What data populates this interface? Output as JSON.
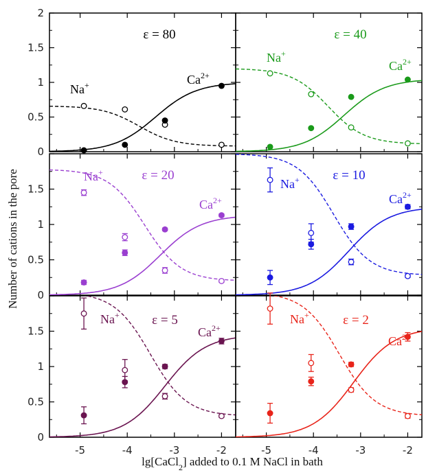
{
  "chart_data": {
    "type": "scatter",
    "xlabel": "lg[CaCl",
    "xlabel_sub": "2",
    "xlabel_rest": "] added to 0.1 M NaCl in bath",
    "ylabel": "Number of cations in the pore",
    "x_ticks": [
      -5,
      -4,
      -3,
      -2
    ],
    "x_tick_labels": [
      "-5",
      "-4",
      "-3",
      "-2"
    ],
    "xlim": [
      -5.65,
      -1.7
    ],
    "y_ticks_top": [
      "0",
      "0.5",
      "1",
      "1.5",
      "2"
    ],
    "y_ticks_mid": [
      "0",
      "0.5",
      "1",
      "1.5"
    ],
    "y_ticks_bot": [
      "0",
      "0.5",
      "1",
      "1.5"
    ],
    "grid": false,
    "panels": [
      {
        "eps": "ε = 80",
        "color": "#000000",
        "ylim": [
          0,
          2
        ],
        "na_label": "Na",
        "na_sup": "+",
        "ca_label": "Ca",
        "ca_sup": "2+",
        "na_points": [
          [
            -4.92,
            0.66,
            0
          ],
          [
            -4.05,
            0.61,
            0
          ],
          [
            -3.2,
            0.39,
            0
          ],
          [
            -2.0,
            0.1,
            0
          ]
        ],
        "ca_points": [
          [
            -4.92,
            0.02,
            0
          ],
          [
            -4.05,
            0.1,
            0
          ],
          [
            -3.2,
            0.45,
            0
          ],
          [
            -2.0,
            0.95,
            0
          ]
        ],
        "na_curve": [
          0.66,
          0.08
        ],
        "ca_curve": [
          1.0,
          0.0
        ]
      },
      {
        "eps": "ε = 40",
        "color": "#1a9a1a",
        "ylim": [
          0,
          2
        ],
        "na_label": "Na",
        "na_sup": "+",
        "ca_label": "Ca",
        "ca_sup": "2+",
        "na_points": [
          [
            -4.92,
            1.13,
            0
          ],
          [
            -4.05,
            0.83,
            0
          ],
          [
            -3.2,
            0.35,
            0
          ],
          [
            -2.0,
            0.12,
            0
          ]
        ],
        "ca_points": [
          [
            -4.92,
            0.07,
            0
          ],
          [
            -4.05,
            0.34,
            0
          ],
          [
            -3.2,
            0.79,
            0
          ],
          [
            -2.0,
            1.04,
            0
          ]
        ],
        "na_curve": [
          1.2,
          0.11
        ],
        "ca_curve": [
          1.05,
          0.0
        ]
      },
      {
        "eps": "ε = 20",
        "color": "#9a3fd0",
        "ylim": [
          0,
          2
        ],
        "na_label": "Na",
        "na_sup": "+",
        "ca_label": "Ca",
        "ca_sup": "2+",
        "na_points": [
          [
            -4.92,
            1.45,
            0.04
          ],
          [
            -4.05,
            0.82,
            0.05
          ],
          [
            -3.2,
            0.35,
            0.04
          ],
          [
            -2.0,
            0.2,
            0.02
          ]
        ],
        "ca_points": [
          [
            -4.92,
            0.18,
            0.03
          ],
          [
            -4.05,
            0.6,
            0.04
          ],
          [
            -3.2,
            0.93,
            0.02
          ],
          [
            -2.0,
            1.13,
            0.02
          ]
        ],
        "na_curve": [
          1.78,
          0.2
        ],
        "ca_curve": [
          1.13,
          0.0
        ]
      },
      {
        "eps": "ε = 10",
        "color": "#1a1ae0",
        "ylim": [
          0,
          2
        ],
        "na_label": "Na",
        "na_sup": "+",
        "ca_label": "Ca",
        "ca_sup": "2+",
        "na_points": [
          [
            -4.92,
            1.63,
            0.17
          ],
          [
            -4.05,
            0.88,
            0.13
          ],
          [
            -3.2,
            0.47,
            0.04
          ],
          [
            -2.0,
            0.27,
            0.02
          ]
        ],
        "ca_points": [
          [
            -4.92,
            0.25,
            0.1
          ],
          [
            -4.05,
            0.72,
            0.07
          ],
          [
            -3.2,
            0.97,
            0.04
          ],
          [
            -2.0,
            1.25,
            0.03
          ]
        ],
        "na_curve": [
          2.0,
          0.28
        ],
        "ca_curve": [
          1.25,
          0.0
        ]
      },
      {
        "eps": "ε = 5",
        "color": "#6a1450",
        "ylim": [
          0,
          2
        ],
        "na_label": "Na",
        "na_sup": "+",
        "ca_label": "Ca",
        "ca_sup": "2+",
        "na_points": [
          [
            -4.92,
            1.75,
            0.22
          ],
          [
            -4.05,
            0.95,
            0.15
          ],
          [
            -3.2,
            0.58,
            0.04
          ],
          [
            -2.0,
            0.3,
            0.02
          ]
        ],
        "ca_points": [
          [
            -4.92,
            0.31,
            0.12
          ],
          [
            -4.05,
            0.78,
            0.08
          ],
          [
            -3.2,
            1.0,
            0.03
          ],
          [
            -2.0,
            1.36,
            0.04
          ]
        ],
        "na_curve": [
          2.05,
          0.3
        ],
        "ca_curve": [
          1.45,
          0.0
        ]
      },
      {
        "eps": "ε = 2",
        "color": "#e8241a",
        "ylim": [
          0,
          2
        ],
        "na_label": "Na",
        "na_sup": "+",
        "ca_label": "Ca",
        "ca_sup": "2+",
        "na_points": [
          [
            -4.92,
            1.82,
            0.22
          ],
          [
            -4.05,
            1.05,
            0.12
          ],
          [
            -3.2,
            0.67,
            0.03
          ],
          [
            -2.0,
            0.3,
            0.03
          ]
        ],
        "ca_points": [
          [
            -4.92,
            0.34,
            0.14
          ],
          [
            -4.05,
            0.79,
            0.06
          ],
          [
            -3.2,
            1.03,
            0.03
          ],
          [
            -2.0,
            1.42,
            0.06
          ]
        ],
        "na_curve": [
          2.05,
          0.3
        ],
        "ca_curve": [
          1.55,
          0.0
        ]
      }
    ]
  }
}
